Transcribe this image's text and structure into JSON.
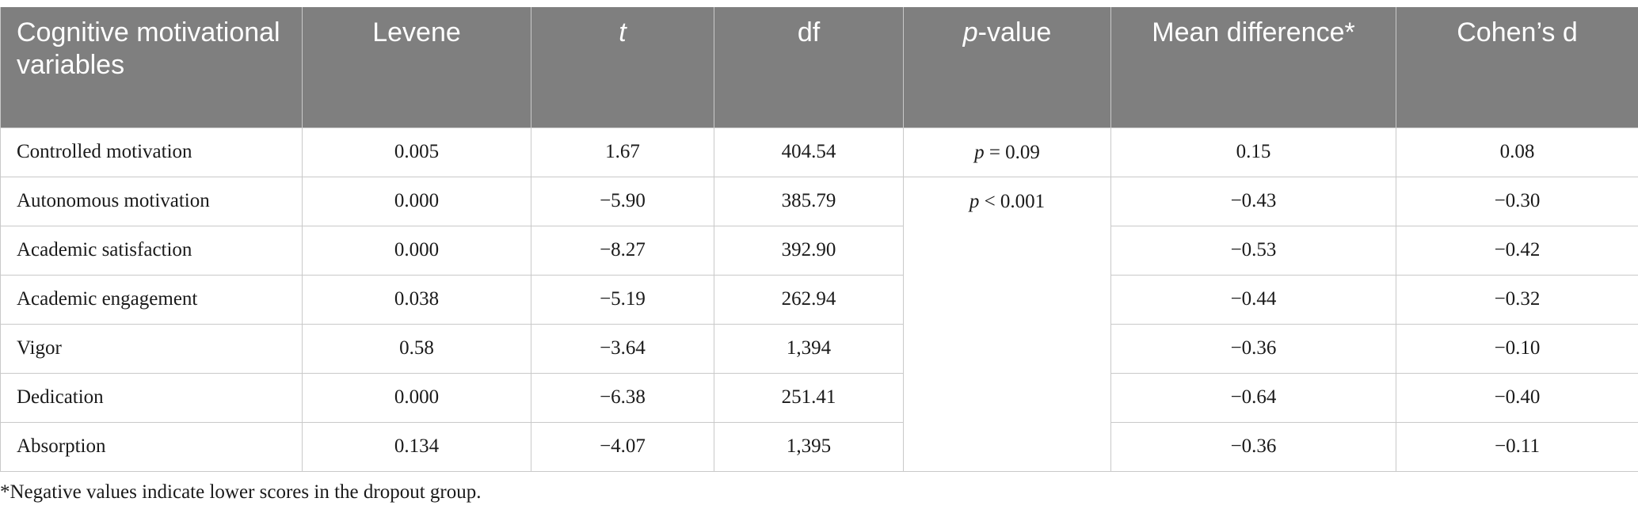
{
  "table": {
    "header": [
      "Cognitive motivational variables",
      "Levene",
      {
        "italic": "t"
      },
      "df",
      {
        "italic": "p",
        "text": "-value"
      },
      "Mean difference*",
      "Cohen’s d"
    ],
    "rows": [
      [
        "Controlled motivation",
        "0.005",
        "1.67",
        "404.54",
        {
          "italic": "p",
          "text": "= 0.09"
        },
        "0.15",
        "0.08"
      ],
      [
        "Autonomous motivation",
        "0.000",
        "−5.90",
        "385.79",
        {
          "italic": "p",
          "text": "< 0.001"
        },
        "−0.43",
        "−0.30"
      ],
      [
        "Academic satisfaction",
        "0.000",
        "−8.27",
        "392.90",
        "−0.53",
        "−0.42"
      ],
      [
        "Academic engagement",
        "0.038",
        "−5.19",
        "262.94",
        "−0.44",
        "−0.32"
      ],
      [
        "Vigor",
        "0.58",
        "−3.64",
        "1,394",
        "−0.36",
        "−0.10"
      ],
      [
        "Dedication",
        "0.000",
        "−6.38",
        "251.41",
        "−0.64",
        "−0.40"
      ],
      [
        "Absorption",
        "0.134",
        "−4.07",
        "1,395",
        "−0.36",
        "−0.11"
      ]
    ]
  },
  "footnote": "*Negative values indicate lower scores in the dropout group."
}
